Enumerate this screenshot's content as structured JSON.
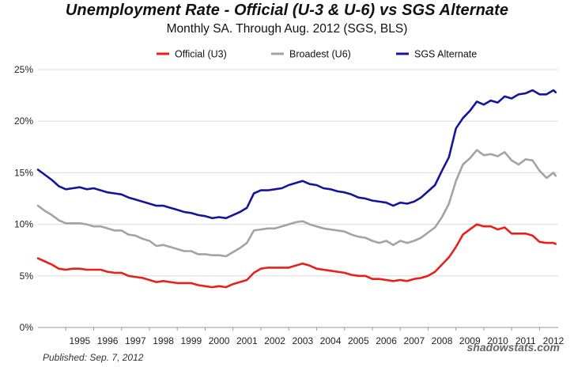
{
  "chart_data": {
    "type": "line",
    "title": "Unemployment Rate - Official (U-3 & U-6) vs SGS Alternate",
    "subtitle": "Monthly SA. Through Aug. 2012  (SGS, BLS)",
    "y_tick_labels": [
      "0%",
      "5%",
      "10%",
      "15%",
      "20%",
      "25%"
    ],
    "ylim": [
      0,
      25
    ],
    "x_tick_labels": [
      "1995",
      "1996",
      "1997",
      "1998",
      "1999",
      "2000",
      "2001",
      "2002",
      "2003",
      "2004",
      "2005",
      "2006",
      "2007",
      "2008",
      "2009",
      "2010",
      "2011",
      "2012"
    ],
    "xlim": [
      1994.0,
      2012.67
    ],
    "grid": true,
    "legend_position": "top-center",
    "series": [
      {
        "name": "Official (U3)",
        "color": "#e8201a",
        "points": [
          [
            1994.0,
            6.7
          ],
          [
            1994.25,
            6.4
          ],
          [
            1994.5,
            6.1
          ],
          [
            1994.75,
            5.7
          ],
          [
            1995.0,
            5.6
          ],
          [
            1995.25,
            5.7
          ],
          [
            1995.5,
            5.7
          ],
          [
            1995.75,
            5.6
          ],
          [
            1996.0,
            5.6
          ],
          [
            1996.25,
            5.6
          ],
          [
            1996.5,
            5.4
          ],
          [
            1996.75,
            5.3
          ],
          [
            1997.0,
            5.3
          ],
          [
            1997.25,
            5.0
          ],
          [
            1997.5,
            4.9
          ],
          [
            1997.75,
            4.8
          ],
          [
            1998.0,
            4.6
          ],
          [
            1998.25,
            4.4
          ],
          [
            1998.5,
            4.5
          ],
          [
            1998.75,
            4.4
          ],
          [
            1999.0,
            4.3
          ],
          [
            1999.25,
            4.3
          ],
          [
            1999.5,
            4.3
          ],
          [
            1999.75,
            4.1
          ],
          [
            2000.0,
            4.0
          ],
          [
            2000.25,
            3.9
          ],
          [
            2000.5,
            4.0
          ],
          [
            2000.75,
            3.9
          ],
          [
            2001.0,
            4.2
          ],
          [
            2001.25,
            4.4
          ],
          [
            2001.5,
            4.6
          ],
          [
            2001.75,
            5.3
          ],
          [
            2002.0,
            5.7
          ],
          [
            2002.25,
            5.8
          ],
          [
            2002.5,
            5.8
          ],
          [
            2002.75,
            5.8
          ],
          [
            2003.0,
            5.8
          ],
          [
            2003.25,
            6.0
          ],
          [
            2003.5,
            6.2
          ],
          [
            2003.75,
            6.0
          ],
          [
            2004.0,
            5.7
          ],
          [
            2004.25,
            5.6
          ],
          [
            2004.5,
            5.5
          ],
          [
            2004.75,
            5.4
          ],
          [
            2005.0,
            5.3
          ],
          [
            2005.25,
            5.1
          ],
          [
            2005.5,
            5.0
          ],
          [
            2005.75,
            5.0
          ],
          [
            2006.0,
            4.7
          ],
          [
            2006.25,
            4.7
          ],
          [
            2006.5,
            4.6
          ],
          [
            2006.75,
            4.5
          ],
          [
            2007.0,
            4.6
          ],
          [
            2007.25,
            4.5
          ],
          [
            2007.5,
            4.7
          ],
          [
            2007.75,
            4.8
          ],
          [
            2008.0,
            5.0
          ],
          [
            2008.25,
            5.4
          ],
          [
            2008.5,
            6.1
          ],
          [
            2008.75,
            6.8
          ],
          [
            2009.0,
            7.8
          ],
          [
            2009.25,
            9.0
          ],
          [
            2009.5,
            9.5
          ],
          [
            2009.75,
            10.0
          ],
          [
            2010.0,
            9.8
          ],
          [
            2010.25,
            9.8
          ],
          [
            2010.5,
            9.5
          ],
          [
            2010.75,
            9.7
          ],
          [
            2011.0,
            9.1
          ],
          [
            2011.25,
            9.1
          ],
          [
            2011.5,
            9.1
          ],
          [
            2011.75,
            8.9
          ],
          [
            2012.0,
            8.3
          ],
          [
            2012.25,
            8.2
          ],
          [
            2012.5,
            8.2
          ],
          [
            2012.58,
            8.1
          ]
        ]
      },
      {
        "name": "Broadest (U6)",
        "color": "#a3a3a3",
        "points": [
          [
            1994.0,
            11.8
          ],
          [
            1994.25,
            11.3
          ],
          [
            1994.5,
            10.9
          ],
          [
            1994.75,
            10.4
          ],
          [
            1995.0,
            10.1
          ],
          [
            1995.25,
            10.1
          ],
          [
            1995.5,
            10.1
          ],
          [
            1995.75,
            10.0
          ],
          [
            1996.0,
            9.8
          ],
          [
            1996.25,
            9.8
          ],
          [
            1996.5,
            9.6
          ],
          [
            1996.75,
            9.4
          ],
          [
            1997.0,
            9.4
          ],
          [
            1997.25,
            9.0
          ],
          [
            1997.5,
            8.9
          ],
          [
            1997.75,
            8.6
          ],
          [
            1998.0,
            8.4
          ],
          [
            1998.25,
            7.9
          ],
          [
            1998.5,
            8.0
          ],
          [
            1998.75,
            7.8
          ],
          [
            1999.0,
            7.6
          ],
          [
            1999.25,
            7.4
          ],
          [
            1999.5,
            7.4
          ],
          [
            1999.75,
            7.1
          ],
          [
            2000.0,
            7.1
          ],
          [
            2000.25,
            7.0
          ],
          [
            2000.5,
            7.0
          ],
          [
            2000.75,
            6.9
          ],
          [
            2001.0,
            7.3
          ],
          [
            2001.25,
            7.7
          ],
          [
            2001.5,
            8.2
          ],
          [
            2001.75,
            9.4
          ],
          [
            2002.0,
            9.5
          ],
          [
            2002.25,
            9.6
          ],
          [
            2002.5,
            9.6
          ],
          [
            2002.75,
            9.8
          ],
          [
            2003.0,
            10.0
          ],
          [
            2003.25,
            10.2
          ],
          [
            2003.5,
            10.3
          ],
          [
            2003.75,
            10.0
          ],
          [
            2004.0,
            9.8
          ],
          [
            2004.25,
            9.6
          ],
          [
            2004.5,
            9.5
          ],
          [
            2004.75,
            9.4
          ],
          [
            2005.0,
            9.3
          ],
          [
            2005.25,
            9.0
          ],
          [
            2005.5,
            8.8
          ],
          [
            2005.75,
            8.7
          ],
          [
            2006.0,
            8.4
          ],
          [
            2006.25,
            8.2
          ],
          [
            2006.5,
            8.4
          ],
          [
            2006.75,
            8.0
          ],
          [
            2007.0,
            8.4
          ],
          [
            2007.25,
            8.2
          ],
          [
            2007.5,
            8.4
          ],
          [
            2007.75,
            8.7
          ],
          [
            2008.0,
            9.2
          ],
          [
            2008.25,
            9.7
          ],
          [
            2008.5,
            10.7
          ],
          [
            2008.75,
            12.0
          ],
          [
            2009.0,
            14.2
          ],
          [
            2009.25,
            15.8
          ],
          [
            2009.5,
            16.4
          ],
          [
            2009.75,
            17.2
          ],
          [
            2010.0,
            16.7
          ],
          [
            2010.25,
            16.8
          ],
          [
            2010.5,
            16.6
          ],
          [
            2010.75,
            17.0
          ],
          [
            2011.0,
            16.2
          ],
          [
            2011.25,
            15.8
          ],
          [
            2011.5,
            16.3
          ],
          [
            2011.75,
            16.2
          ],
          [
            2012.0,
            15.2
          ],
          [
            2012.25,
            14.5
          ],
          [
            2012.5,
            15.0
          ],
          [
            2012.58,
            14.7
          ]
        ]
      },
      {
        "name": "SGS Alternate",
        "color": "#14149c",
        "points": [
          [
            1994.0,
            15.3
          ],
          [
            1994.25,
            14.8
          ],
          [
            1994.5,
            14.3
          ],
          [
            1994.75,
            13.7
          ],
          [
            1995.0,
            13.4
          ],
          [
            1995.25,
            13.5
          ],
          [
            1995.5,
            13.6
          ],
          [
            1995.75,
            13.4
          ],
          [
            1996.0,
            13.5
          ],
          [
            1996.25,
            13.3
          ],
          [
            1996.5,
            13.1
          ],
          [
            1996.75,
            13.0
          ],
          [
            1997.0,
            12.9
          ],
          [
            1997.25,
            12.6
          ],
          [
            1997.5,
            12.4
          ],
          [
            1997.75,
            12.2
          ],
          [
            1998.0,
            12.0
          ],
          [
            1998.25,
            11.8
          ],
          [
            1998.5,
            11.8
          ],
          [
            1998.75,
            11.6
          ],
          [
            1999.0,
            11.4
          ],
          [
            1999.25,
            11.2
          ],
          [
            1999.5,
            11.1
          ],
          [
            1999.75,
            10.9
          ],
          [
            2000.0,
            10.8
          ],
          [
            2000.25,
            10.6
          ],
          [
            2000.5,
            10.7
          ],
          [
            2000.75,
            10.6
          ],
          [
            2001.0,
            10.9
          ],
          [
            2001.25,
            11.2
          ],
          [
            2001.5,
            11.6
          ],
          [
            2001.75,
            13.0
          ],
          [
            2002.0,
            13.3
          ],
          [
            2002.25,
            13.3
          ],
          [
            2002.5,
            13.4
          ],
          [
            2002.75,
            13.5
          ],
          [
            2003.0,
            13.8
          ],
          [
            2003.25,
            14.0
          ],
          [
            2003.5,
            14.2
          ],
          [
            2003.75,
            13.9
          ],
          [
            2004.0,
            13.8
          ],
          [
            2004.25,
            13.5
          ],
          [
            2004.5,
            13.4
          ],
          [
            2004.75,
            13.2
          ],
          [
            2005.0,
            13.1
          ],
          [
            2005.25,
            12.9
          ],
          [
            2005.5,
            12.6
          ],
          [
            2005.75,
            12.5
          ],
          [
            2006.0,
            12.3
          ],
          [
            2006.25,
            12.2
          ],
          [
            2006.5,
            12.1
          ],
          [
            2006.75,
            11.8
          ],
          [
            2007.0,
            12.1
          ],
          [
            2007.25,
            12.0
          ],
          [
            2007.5,
            12.2
          ],
          [
            2007.75,
            12.6
          ],
          [
            2008.0,
            13.2
          ],
          [
            2008.25,
            13.8
          ],
          [
            2008.5,
            15.2
          ],
          [
            2008.75,
            16.5
          ],
          [
            2009.0,
            19.3
          ],
          [
            2009.25,
            20.3
          ],
          [
            2009.5,
            21.0
          ],
          [
            2009.75,
            21.9
          ],
          [
            2010.0,
            21.6
          ],
          [
            2010.25,
            22.0
          ],
          [
            2010.5,
            21.8
          ],
          [
            2010.75,
            22.4
          ],
          [
            2011.0,
            22.2
          ],
          [
            2011.25,
            22.6
          ],
          [
            2011.5,
            22.7
          ],
          [
            2011.75,
            23.0
          ],
          [
            2012.0,
            22.6
          ],
          [
            2012.25,
            22.6
          ],
          [
            2012.5,
            23.0
          ],
          [
            2012.58,
            22.8
          ]
        ]
      }
    ]
  },
  "footer": {
    "published": "Published: Sep. 7, 2012",
    "brand": "shadowstats.com"
  }
}
